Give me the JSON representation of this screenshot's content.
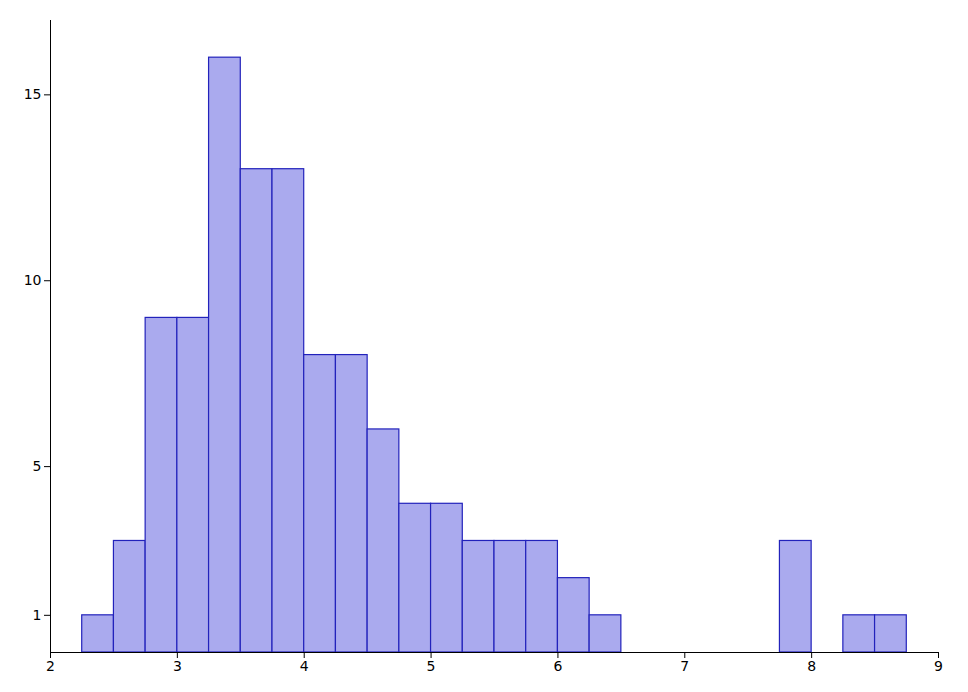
{
  "chart_data": {
    "type": "histogram",
    "x": [
      2.25,
      2.5,
      2.75,
      3.0,
      3.25,
      3.5,
      3.75,
      4.0,
      4.25,
      4.5,
      4.75,
      5.0,
      5.25,
      5.5,
      5.75,
      6.0,
      6.25,
      6.5,
      6.75,
      7.75,
      8.25,
      8.5
    ],
    "values": [
      1,
      3,
      9,
      9,
      16,
      13,
      13,
      8,
      8,
      6,
      4,
      4,
      3,
      3,
      3,
      2,
      1,
      0,
      0,
      3,
      1,
      1
    ],
    "bin_width": 0.25,
    "color": "#aaaaee",
    "edgecolor": "#2222bb",
    "xlim": [
      2,
      9
    ],
    "ylim": [
      0,
      17
    ],
    "xticks": [
      2,
      3,
      4,
      5,
      6,
      7,
      8,
      9
    ],
    "yticks": [
      1,
      5,
      10,
      15
    ],
    "grid": false
  }
}
